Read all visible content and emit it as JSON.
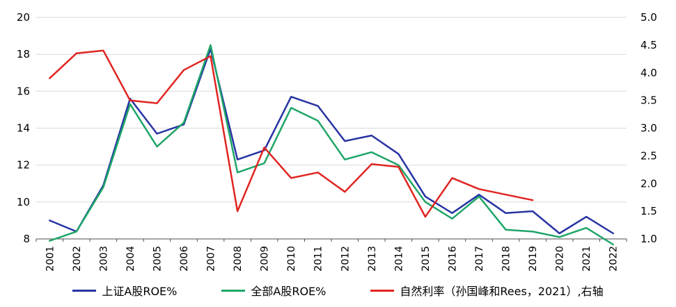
{
  "chart_data": {
    "type": "line",
    "title": "",
    "categories": [
      2001,
      2002,
      2003,
      2004,
      2005,
      2006,
      2007,
      2008,
      2009,
      2010,
      2011,
      2012,
      2013,
      2014,
      2015,
      2016,
      2017,
      2018,
      2019,
      2020,
      2021,
      2022
    ],
    "series": [
      {
        "name": "上证A股ROE%",
        "axis": "left",
        "color": "#2733A3",
        "values": [
          9.0,
          8.4,
          10.9,
          15.6,
          13.7,
          14.2,
          18.3,
          12.3,
          12.8,
          15.7,
          15.2,
          13.3,
          13.6,
          12.6,
          10.3,
          9.4,
          10.4,
          9.4,
          9.5,
          8.3,
          9.2,
          8.3
        ]
      },
      {
        "name": "全部A股ROE%",
        "axis": "left",
        "color": "#1EA567",
        "values": [
          7.9,
          8.4,
          10.8,
          15.3,
          13.0,
          14.3,
          18.5,
          11.6,
          12.1,
          15.1,
          14.4,
          12.3,
          12.7,
          12.0,
          10.0,
          9.1,
          10.3,
          8.5,
          8.4,
          8.1,
          8.6,
          7.7
        ]
      },
      {
        "name": "自然利率（孙国峰和Rees，2021）,右轴",
        "axis": "right",
        "color": "#E02420",
        "values": [
          3.9,
          4.35,
          4.4,
          3.5,
          3.45,
          4.05,
          4.3,
          1.5,
          2.65,
          2.1,
          2.2,
          1.85,
          2.35,
          2.3,
          1.4,
          2.1,
          1.9,
          1.8,
          1.7,
          null,
          null,
          null
        ]
      }
    ],
    "left_axis": {
      "min": 8,
      "max": 20,
      "ticks": [
        20,
        18,
        16,
        14,
        12,
        10,
        8
      ]
    },
    "right_axis": {
      "min": 1.0,
      "max": 5.0,
      "ticks": [
        "5.0",
        "4.5",
        "4.0",
        "3.5",
        "3.0",
        "2.5",
        "2.0",
        "1.5",
        "1.0"
      ]
    },
    "grid": "horizontal",
    "legend_position": "bottom"
  },
  "colors": {
    "gridline": "#D9D9D9",
    "axis_line": "#4d4d4d",
    "axis_text": "#000000",
    "background": "#FFFFFF"
  }
}
